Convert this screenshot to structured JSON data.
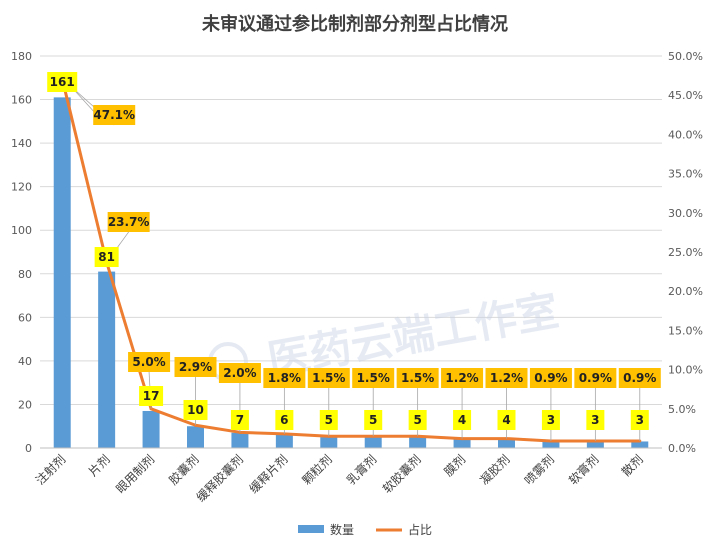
{
  "chart_data": {
    "type": "bar",
    "title": "未审议通过参比制剂部分剂型占比情况",
    "categories": [
      "注射剂",
      "片剂",
      "眼用制剂",
      "胶囊剂",
      "缓释胶囊剂",
      "缓释片剂",
      "颗粒剂",
      "乳膏剂",
      "软胶囊剂",
      "膜剂",
      "凝胶剂",
      "喷雾剂",
      "软膏剂",
      "散剂"
    ],
    "series": [
      {
        "name": "数量",
        "type": "bar",
        "axis": "left",
        "color": "#5b9bd5",
        "values": [
          161,
          81,
          17,
          10,
          7,
          6,
          5,
          5,
          5,
          4,
          4,
          3,
          3,
          3
        ],
        "labels": [
          "161",
          "81",
          "17",
          "10",
          "7",
          "6",
          "5",
          "5",
          "5",
          "4",
          "4",
          "3",
          "3",
          "3"
        ]
      },
      {
        "name": "占比",
        "type": "line",
        "axis": "right",
        "color": "#ed7d31",
        "values": [
          47.1,
          23.7,
          5.0,
          2.9,
          2.0,
          1.8,
          1.5,
          1.5,
          1.5,
          1.2,
          1.2,
          0.9,
          0.9,
          0.9
        ],
        "labels": [
          "47.1%",
          "23.7%",
          "5.0%",
          "2.9%",
          "2.0%",
          "1.8%",
          "1.5%",
          "1.5%",
          "1.5%",
          "1.2%",
          "1.2%",
          "0.9%",
          "0.9%",
          "0.9%"
        ]
      }
    ],
    "y_left": {
      "min": 0,
      "max": 180,
      "ticks": [
        "0",
        "20",
        "40",
        "60",
        "80",
        "100",
        "120",
        "140",
        "160",
        "180"
      ]
    },
    "y_right": {
      "min": 0,
      "max": 50,
      "ticks": [
        "0.0%",
        "5.0%",
        "10.0%",
        "15.0%",
        "20.0%",
        "25.0%",
        "30.0%",
        "35.0%",
        "40.0%",
        "45.0%",
        "50.0%"
      ]
    },
    "grid": true,
    "legend_position": "bottom",
    "label_bg": "#ffff00",
    "label_bg_line": "#ffc000",
    "watermark": "医药云端工作室"
  }
}
